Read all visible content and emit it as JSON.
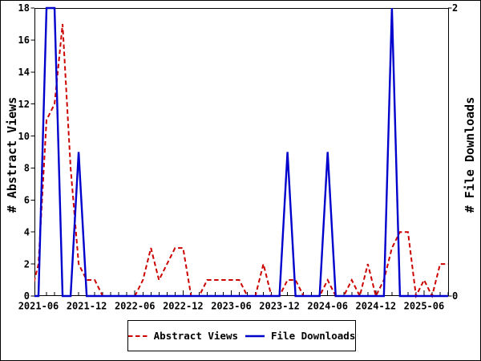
{
  "window": {
    "background": "#ffffff",
    "border_color": "#000000"
  },
  "chart_data": {
    "type": "line",
    "title": "",
    "grid": false,
    "legend_position": "bottom-center",
    "y_left": {
      "label": "# Abstract Views",
      "min": 0,
      "max": 18,
      "tick_step": 2,
      "tick_labels": [
        "0",
        "2",
        "4",
        "6",
        "8",
        "10",
        "12",
        "14",
        "16",
        "18"
      ]
    },
    "y_right": {
      "label": "# File Downloads",
      "min": 0,
      "max": 2,
      "tick_labels": [
        "0",
        "2"
      ]
    },
    "x_axis": {
      "tick_labels": [
        "2021-06",
        "2021-12",
        "2022-06",
        "2022-12",
        "2023-06",
        "2023-12",
        "2024-06",
        "2024-12",
        "2025-06"
      ],
      "major_tick_month_indices": [
        1,
        7,
        13,
        19,
        25,
        31,
        37,
        43,
        49
      ],
      "minor_tick_unit": "month"
    },
    "months": [
      "2021-05",
      "2021-06",
      "2021-07",
      "2021-08",
      "2021-09",
      "2021-10",
      "2021-11",
      "2021-12",
      "2022-01",
      "2022-02",
      "2022-03",
      "2022-04",
      "2022-05",
      "2022-06",
      "2022-07",
      "2022-08",
      "2022-09",
      "2022-10",
      "2022-11",
      "2022-12",
      "2023-01",
      "2023-02",
      "2023-03",
      "2023-04",
      "2023-05",
      "2023-06",
      "2023-07",
      "2023-08",
      "2023-09",
      "2023-10",
      "2023-11",
      "2023-12",
      "2024-01",
      "2024-02",
      "2024-03",
      "2024-04",
      "2024-05",
      "2024-06",
      "2024-07",
      "2024-08",
      "2024-09",
      "2024-10",
      "2024-11",
      "2024-12",
      "2025-01",
      "2025-02",
      "2025-03",
      "2025-04",
      "2025-05",
      "2025-06",
      "2025-07",
      "2025-08",
      "2025-09"
    ],
    "series": [
      {
        "name": "Abstract Views",
        "axis": "left",
        "color": "#cd0000",
        "line_style": "dashed",
        "values": [
          0,
          2,
          11,
          12,
          17,
          8,
          2,
          1,
          1,
          0,
          0,
          0,
          0,
          0,
          1,
          3,
          1,
          2,
          3,
          3,
          0,
          0,
          1,
          1,
          1,
          1,
          1,
          0,
          0,
          2,
          0,
          0,
          1,
          1,
          0,
          0,
          0,
          1,
          0,
          0,
          1,
          0,
          2,
          0,
          1,
          3,
          4,
          4,
          0,
          1,
          0,
          2,
          2
        ]
      },
      {
        "name": "File Downloads",
        "axis": "right",
        "color": "#0000cd",
        "line_style": "solid",
        "values": [
          0,
          0,
          2,
          2,
          0,
          0,
          1,
          0,
          0,
          0,
          0,
          0,
          0,
          0,
          0,
          0,
          0,
          0,
          0,
          0,
          0,
          0,
          0,
          0,
          0,
          0,
          0,
          0,
          0,
          0,
          0,
          0,
          1,
          0,
          0,
          0,
          0,
          1,
          0,
          0,
          0,
          0,
          0,
          0,
          0,
          2,
          0,
          0,
          0,
          0,
          0,
          0,
          0
        ]
      }
    ]
  }
}
